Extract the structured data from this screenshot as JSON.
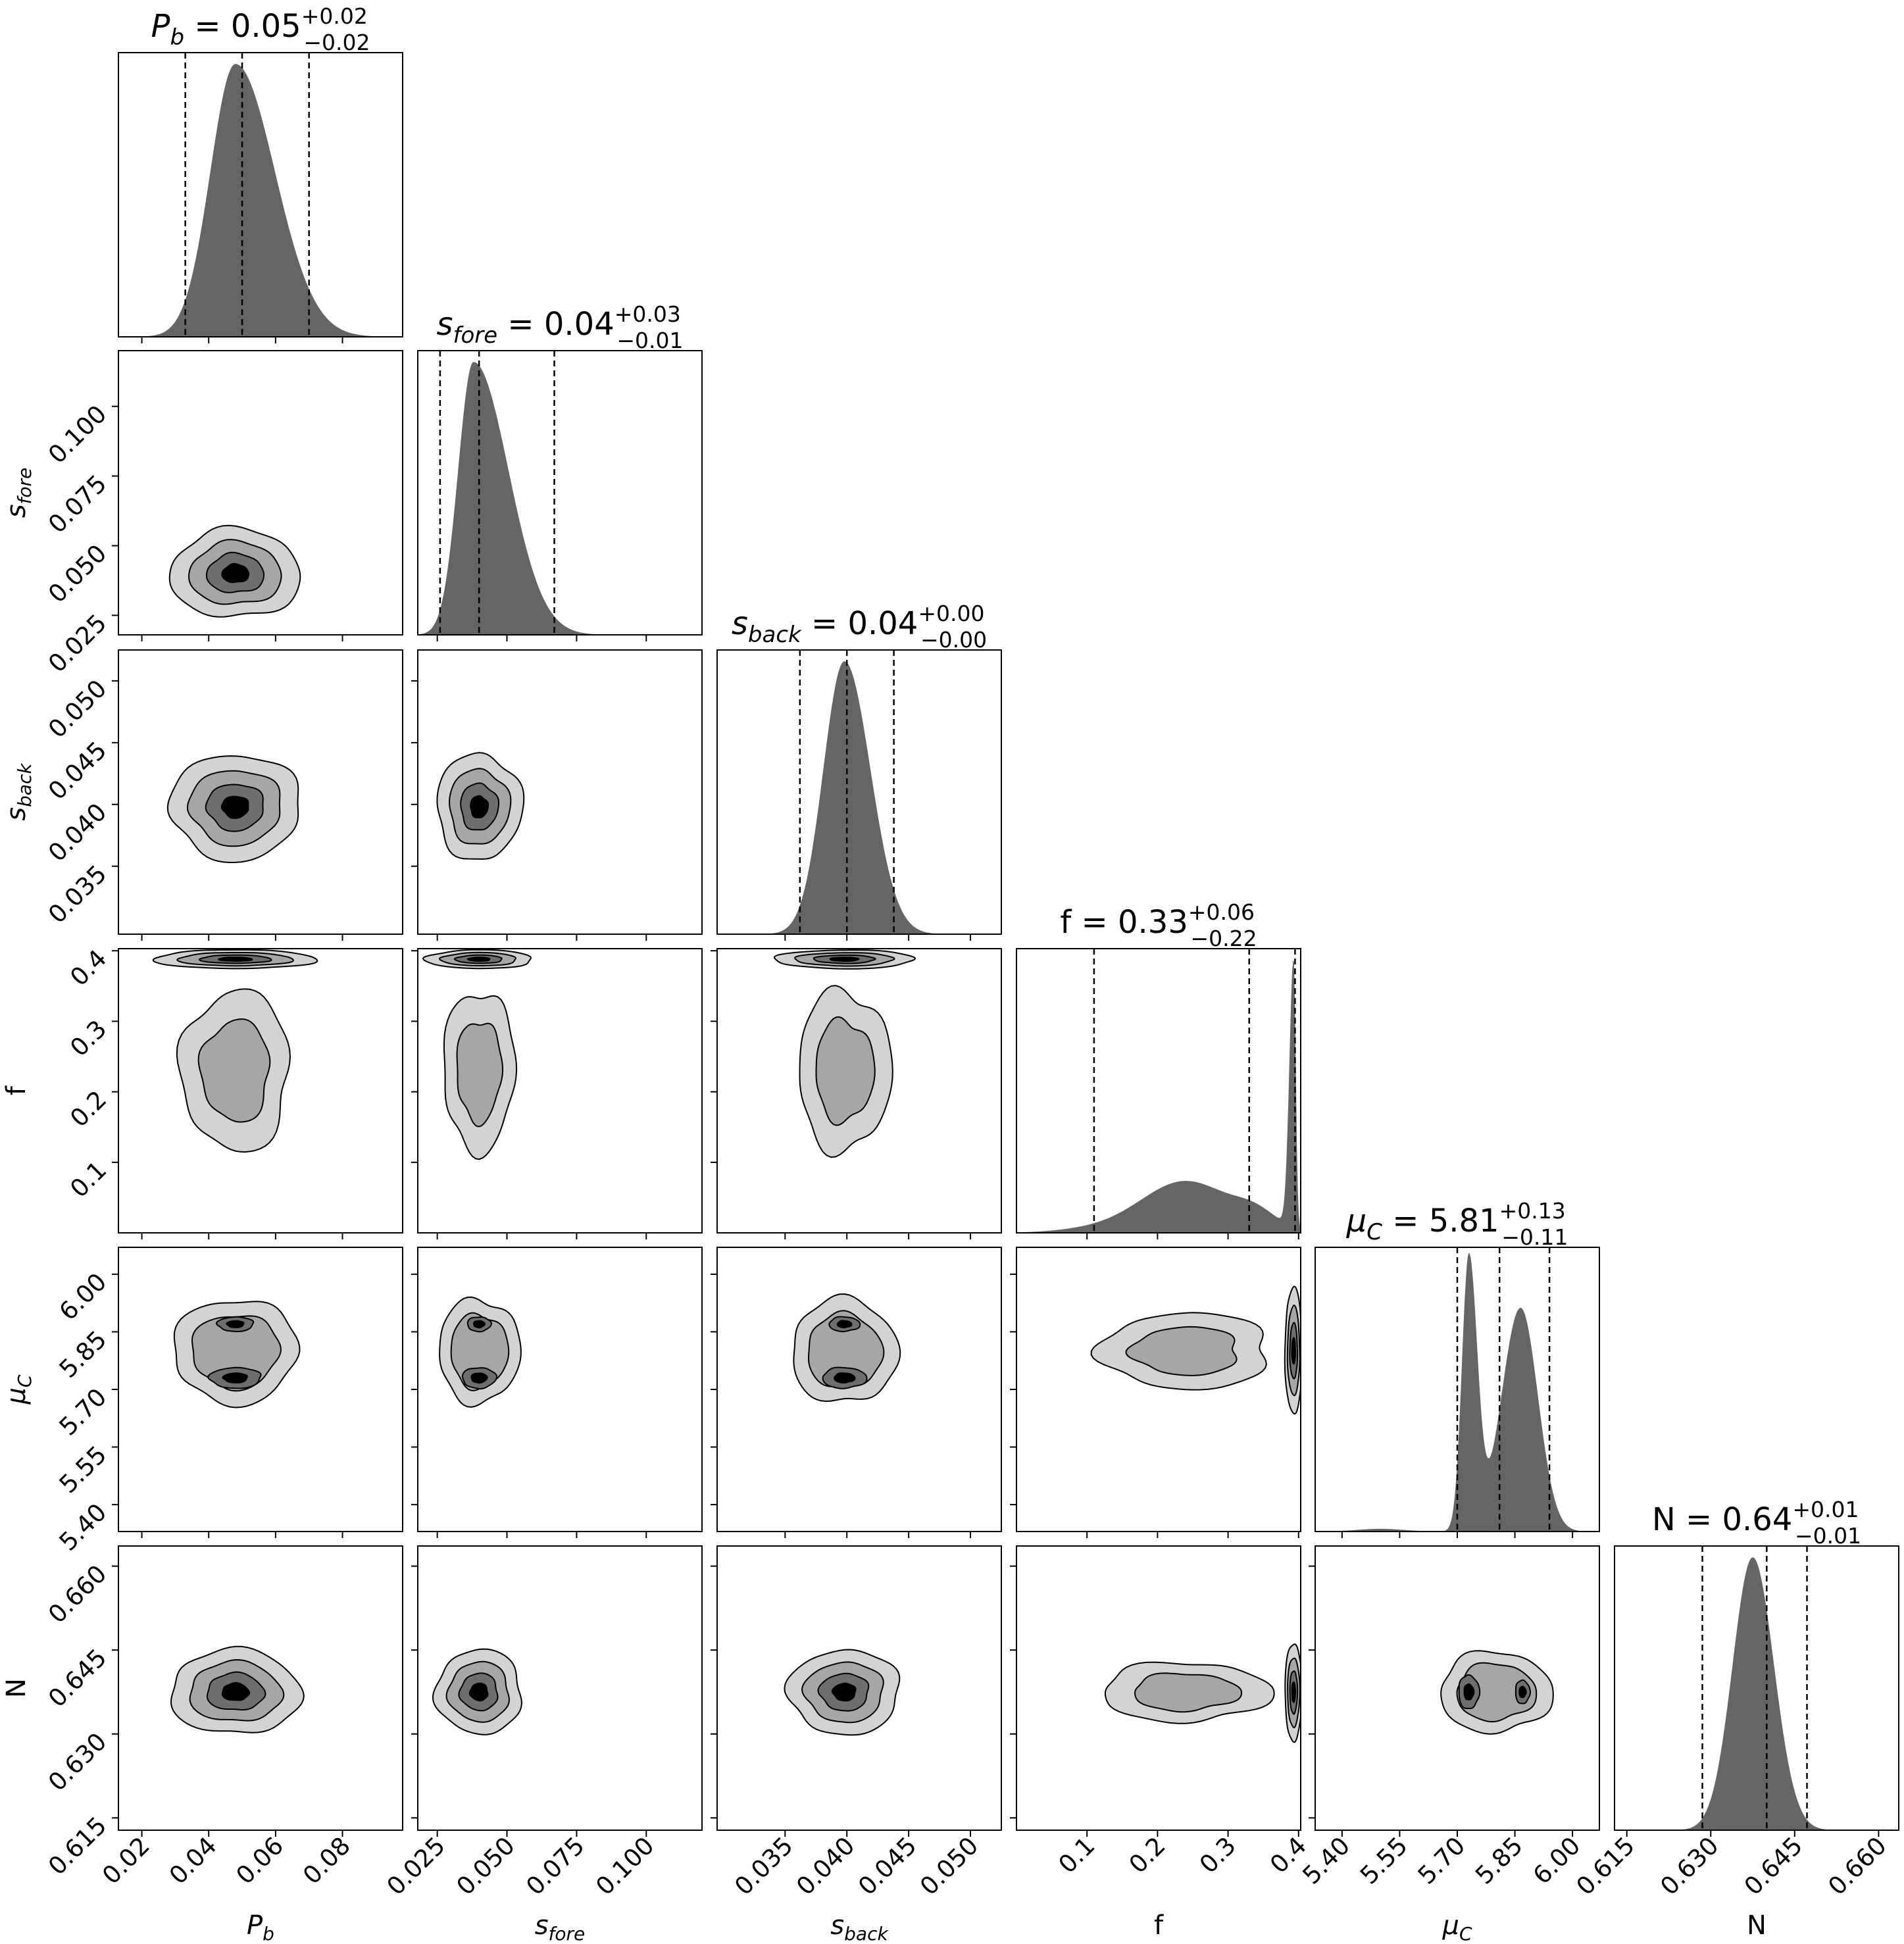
{
  "chart_data": {
    "type": "corner",
    "parameters": [
      {
        "key": "pb",
        "sym": "P",
        "sub": "b",
        "italic": true,
        "range": [
          0.013,
          0.098
        ],
        "ticks": [
          0.02,
          0.04,
          0.06,
          0.08
        ],
        "tick_labels": [
          "0.02",
          "0.04",
          "0.06",
          "0.08"
        ],
        "median": 0.05,
        "q16": 0.033,
        "q84": 0.07,
        "hist": {
          "type": "gauss",
          "mu": 0.048,
          "sl": 0.0075,
          "sr": 0.0118
        }
      },
      {
        "key": "sfore",
        "sym": "s",
        "sub": "fore",
        "italic": true,
        "range": [
          0.018,
          0.12
        ],
        "ticks": [
          0.025,
          0.05,
          0.075,
          0.1
        ],
        "tick_labels": [
          "0.025",
          "0.050",
          "0.075",
          "0.100"
        ],
        "median": 0.04,
        "q16": 0.026,
        "q84": 0.067,
        "hist": {
          "type": "gauss",
          "mu": 0.038,
          "sl": 0.0055,
          "sr": 0.0125
        }
      },
      {
        "key": "sback",
        "sym": "s",
        "sub": "back",
        "italic": true,
        "range": [
          0.0295,
          0.0525
        ],
        "ticks": [
          0.035,
          0.04,
          0.045,
          0.05
        ],
        "tick_labels": [
          "0.035",
          "0.040",
          "0.045",
          "0.050"
        ],
        "median": 0.04,
        "q16": 0.0362,
        "q84": 0.0438,
        "hist": {
          "type": "gauss",
          "mu": 0.0398,
          "sl": 0.0017,
          "sr": 0.0021
        }
      },
      {
        "key": "f",
        "sym": "f",
        "sub": "",
        "italic": false,
        "range": [
          0.0,
          0.403
        ],
        "ticks": [
          0.1,
          0.2,
          0.3,
          0.4
        ],
        "tick_labels": [
          "0.1",
          "0.2",
          "0.3",
          "0.4"
        ],
        "median": 0.33,
        "q16": 0.11,
        "q84": 0.395,
        "hist": {
          "type": "f"
        }
      },
      {
        "key": "muc",
        "sym": "μ",
        "sub": "C",
        "italic": true,
        "range": [
          5.33,
          6.07
        ],
        "ticks": [
          5.4,
          5.55,
          5.7,
          5.85,
          6.0
        ],
        "tick_labels": [
          "5.40",
          "5.55",
          "5.70",
          "5.85",
          "6.00"
        ],
        "median": 5.81,
        "q16": 5.7,
        "q84": 5.94,
        "hist": {
          "type": "muc"
        }
      },
      {
        "key": "N",
        "sym": "N",
        "sub": "",
        "italic": false,
        "range": [
          0.6128,
          0.6636
        ],
        "ticks": [
          0.615,
          0.63,
          0.645,
          0.66
        ],
        "tick_labels": [
          "0.615",
          "0.630",
          "0.645",
          "0.660"
        ],
        "median": 0.64,
        "q16": 0.6285,
        "q84": 0.6472,
        "hist": {
          "type": "gauss",
          "mu": 0.6375,
          "sl": 0.0036,
          "sr": 0.0038
        }
      }
    ],
    "titles": [
      {
        "sym": "P",
        "sub": "b",
        "italic": true,
        "value": "0.05",
        "plus": "+0.02",
        "minus": "−0.02"
      },
      {
        "sym": "s",
        "sub": "fore",
        "italic": true,
        "value": "0.04",
        "plus": "+0.03",
        "minus": "−0.01"
      },
      {
        "sym": "s",
        "sub": "back",
        "italic": true,
        "value": "0.04",
        "plus": "+0.00",
        "minus": "−0.00"
      },
      {
        "sym": "f",
        "sub": "",
        "italic": false,
        "value": "0.33",
        "plus": "+0.06",
        "minus": "−0.22"
      },
      {
        "sym": "μ",
        "sub": "C",
        "italic": true,
        "value": "5.81",
        "plus": "+0.13",
        "minus": "−0.11"
      },
      {
        "sym": "N",
        "sub": "",
        "italic": false,
        "value": "0.64",
        "plus": "+0.01",
        "minus": "−0.01"
      }
    ],
    "contour_fills": [
      "#d3d3d3",
      "#a6a6a6",
      "#6e6e6e",
      "#000000"
    ],
    "histogram_fill": "#656565",
    "line_color": "#000000"
  }
}
